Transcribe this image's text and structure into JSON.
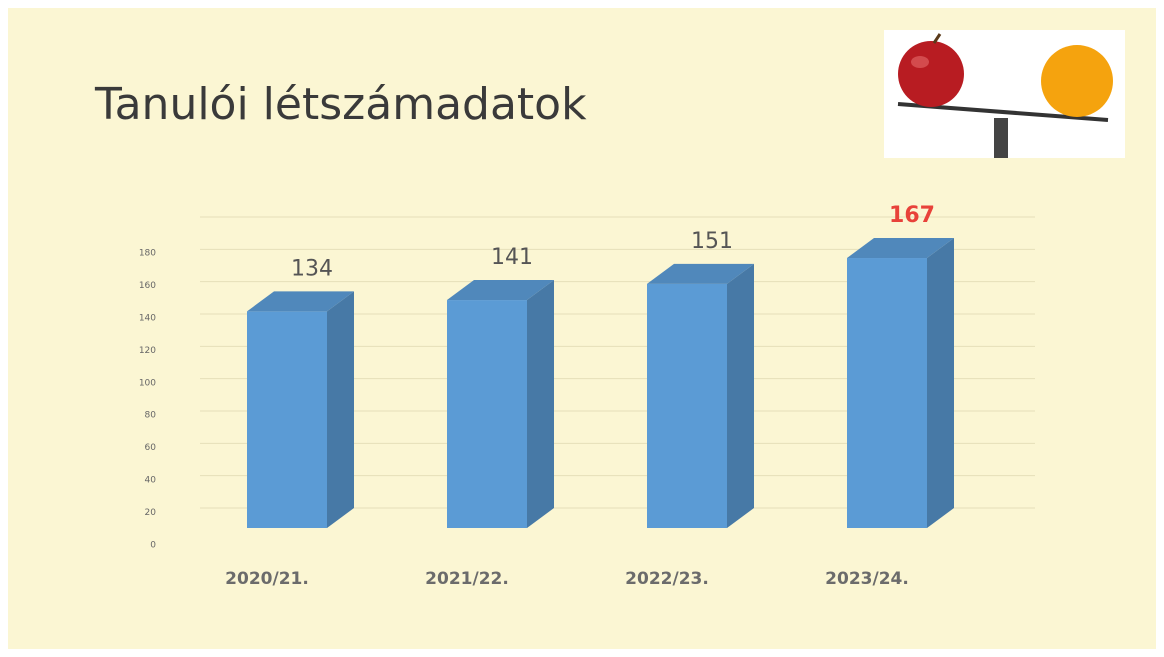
{
  "chart_data": {
    "type": "bar",
    "title": "Tanulói létszámadatok",
    "categories": [
      "2020/21.",
      "2021/22.",
      "2022/23.",
      "2023/24."
    ],
    "values": [
      134,
      141,
      151,
      167
    ],
    "color": "#5b9bd5",
    "label_colors": [
      "#555555",
      "#555555",
      "#555555",
      "#e8423a"
    ],
    "ylim": [
      0,
      180
    ],
    "yticks": [
      0,
      20,
      40,
      60,
      80,
      100,
      120,
      140,
      160,
      180
    ],
    "grid": true
  }
}
